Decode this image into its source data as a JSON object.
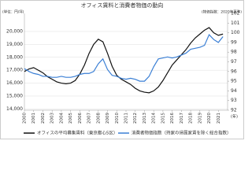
{
  "chart_data": {
    "type": "line",
    "title": "オフィス賃料と消費者物価の動向",
    "y_label": "(単位：円/坪)",
    "y2_label": "(物価指数：2020年基準)",
    "x_unit": "(年)",
    "x": [
      2000,
      2000.5,
      2001,
      2001.5,
      2002,
      2002.5,
      2003,
      2003.5,
      2004,
      2004.5,
      2005,
      2005.5,
      2006,
      2006.5,
      2007,
      2007.5,
      2008,
      2008.5,
      2009,
      2009.5,
      2010,
      2010.5,
      2011,
      2011.5,
      2012,
      2012.5,
      2013,
      2013.5,
      2014,
      2014.5,
      2015,
      2015.5,
      2016,
      2016.5,
      2017,
      2017.5,
      2018,
      2018.5,
      2019,
      2019.5,
      2020,
      2020.5,
      2021,
      2021.5
    ],
    "xlim": [
      2000,
      2022
    ],
    "xticks": [
      2000,
      2001,
      2002,
      2003,
      2004,
      2005,
      2006,
      2007,
      2008,
      2009,
      2010,
      2011,
      2012,
      2013,
      2014,
      2015,
      2016,
      2017,
      2018,
      2019,
      2020,
      2021
    ],
    "ylim": [
      13900,
      21400
    ],
    "yticks": [
      {
        "value": 14000,
        "label": "14,000"
      },
      {
        "value": 15000,
        "label": "15,000"
      },
      {
        "value": 16000,
        "label": "16,000"
      },
      {
        "value": 17000,
        "label": "17,000"
      },
      {
        "value": 18000,
        "label": "18,000"
      },
      {
        "value": 19000,
        "label": "19,000"
      },
      {
        "value": 20000,
        "label": "20,000"
      }
    ],
    "y2lim": [
      92,
      102
    ],
    "y2ticks": [
      92,
      93,
      94,
      95,
      96,
      97,
      98,
      99,
      100,
      101,
      102
    ],
    "grid": true,
    "series": [
      {
        "name": "オフィスの平均募集賃料（東京都心5区）",
        "color": "#111111",
        "values": [
          16900,
          17100,
          17200,
          17000,
          16800,
          16500,
          16300,
          16100,
          16000,
          15950,
          16000,
          16200,
          16700,
          17400,
          18300,
          19000,
          19400,
          19200,
          18300,
          17300,
          16600,
          16300,
          16100,
          15900,
          15600,
          15400,
          15300,
          15250,
          15400,
          15700,
          16200,
          16800,
          17400,
          17800,
          18200,
          18600,
          19100,
          19500,
          19800,
          20100,
          20300,
          19900,
          19700,
          19800
        ]
      },
      {
        "name": "消費者物価指数（持家の帰属家賃を除く総合指数）",
        "color": "#3a7fd5",
        "axis": "y2",
        "values": [
          96.3,
          96.0,
          95.8,
          95.7,
          95.5,
          95.5,
          95.4,
          95.4,
          95.5,
          95.4,
          95.4,
          95.5,
          95.7,
          95.8,
          95.8,
          96.0,
          96.8,
          97.3,
          96.2,
          95.6,
          95.5,
          95.3,
          95.2,
          95.3,
          95.2,
          95.0,
          95.0,
          95.5,
          96.5,
          97.3,
          97.4,
          97.5,
          97.4,
          97.5,
          97.7,
          97.9,
          98.3,
          98.4,
          98.5,
          98.7,
          99.8,
          99.3,
          99.0,
          99.6
        ]
      }
    ]
  }
}
